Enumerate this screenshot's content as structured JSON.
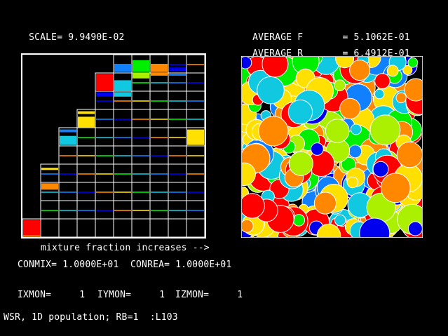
{
  "scale": {
    "label": "SCALE=",
    "value": "9.9490E-02"
  },
  "average_f": {
    "label": "AVERAGE F",
    "value": "= 5.1062E-01"
  },
  "average_r": {
    "label": "AVERAGE R",
    "value": "= 6.4912E-01"
  },
  "axis_caption": "mixture fraction increases -->",
  "conmix": "CONMIX= 1.0000E+01",
  "conrea": "CONREA= 1.0000E+01",
  "monitors": {
    "ixmon": "IXMON=     1",
    "iymon": "IYMON=     1",
    "izmon": "IZMON=     1"
  },
  "status_line": "WSR, 1D population; RB=1  :L103",
  "colors": {
    "red": "#ff0000",
    "orange": "#ff8800",
    "yellow": "#ffe000",
    "lime": "#aaf000",
    "green": "#00ee00",
    "cyan": "#10c8e0",
    "blue": "#1080ff",
    "darkblue": "#0000ee"
  },
  "grid_bars": [
    {
      "col": 0,
      "row": 0,
      "h": 0.95,
      "c": "red"
    },
    {
      "col": 0,
      "row": 0,
      "h": 0.08,
      "at": 0.9,
      "c": "orange"
    },
    {
      "col": 1,
      "row": 2,
      "h": 0.35,
      "c": "orange"
    },
    {
      "col": 1,
      "row": 3,
      "h": 0.12,
      "at": 0.2,
      "c": "yellow"
    },
    {
      "col": 2,
      "row": 5,
      "h": 0.5,
      "at": 0.45,
      "c": "cyan"
    },
    {
      "col": 2,
      "row": 5,
      "h": 0.15,
      "at": 0.1,
      "c": "blue"
    },
    {
      "col": 3,
      "row": 6,
      "h": 0.6,
      "at": 0.4,
      "c": "yellow"
    },
    {
      "col": 3,
      "row": 6,
      "h": 0.15,
      "at": 0.1,
      "c": "yellow"
    },
    {
      "col": 4,
      "row": 8,
      "h": 0.95,
      "c": "red"
    },
    {
      "col": 4,
      "row": 7,
      "h": 0.25,
      "at": 0.05,
      "c": "darkblue"
    },
    {
      "col": 5,
      "row": 9,
      "h": 0.45,
      "at": 0.5,
      "c": "blue"
    },
    {
      "col": 5,
      "row": 8,
      "h": 0.6,
      "at": 0.4,
      "c": "cyan"
    },
    {
      "col": 5,
      "row": 7,
      "h": 0.25,
      "at": 0.05,
      "c": "cyan"
    },
    {
      "col": 6,
      "row": 9,
      "h": 0.65,
      "at": 0.3,
      "c": "green"
    },
    {
      "col": 6,
      "row": 8,
      "h": 0.3,
      "at": 0.0,
      "c": "lime"
    },
    {
      "col": 7,
      "row": 9,
      "h": 0.45,
      "at": 0.5,
      "c": "orange"
    },
    {
      "col": 7,
      "row": 8,
      "h": 0.15,
      "at": 0.0,
      "c": "orange"
    },
    {
      "col": 8,
      "row": 9,
      "h": 0.2,
      "at": 0.7,
      "c": "darkblue"
    },
    {
      "col": 8,
      "row": 8,
      "h": 0.1,
      "at": 0.05,
      "c": "blue"
    },
    {
      "col": 9,
      "row": 5,
      "h": 0.85,
      "at": 0.1,
      "c": "yellow"
    }
  ]
}
